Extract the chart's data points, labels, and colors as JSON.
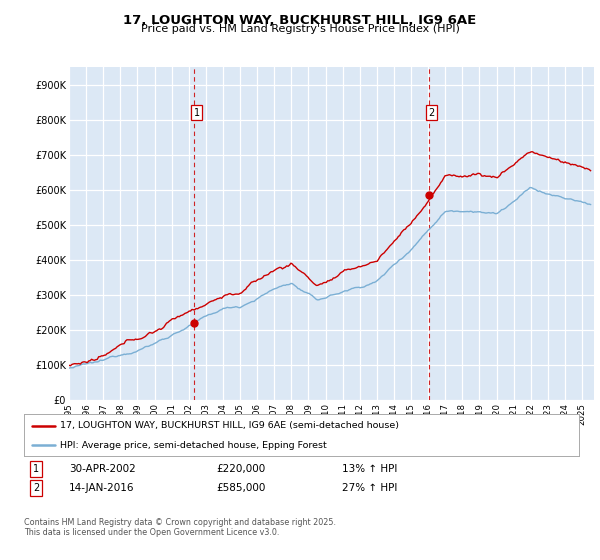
{
  "title": "17, LOUGHTON WAY, BUCKHURST HILL, IG9 6AE",
  "subtitle": "Price paid vs. HM Land Registry's House Price Index (HPI)",
  "legend_line1": "17, LOUGHTON WAY, BUCKHURST HILL, IG9 6AE (semi-detached house)",
  "legend_line2": "HPI: Average price, semi-detached house, Epping Forest",
  "footnote": "Contains HM Land Registry data © Crown copyright and database right 2025.\nThis data is licensed under the Open Government Licence v3.0.",
  "marker1_date": "30-APR-2002",
  "marker1_price": "£220,000",
  "marker1_hpi": "13% ↑ HPI",
  "marker1_year": 2002.33,
  "marker1_value": 220000,
  "marker2_date": "14-JAN-2016",
  "marker2_price": "£585,000",
  "marker2_hpi": "27% ↑ HPI",
  "marker2_year": 2016.04,
  "marker2_value": 585000,
  "hpi_color": "#7bafd4",
  "price_color": "#cc0000",
  "marker_color": "#cc0000",
  "vline_color": "#cc0000",
  "background_color": "#dce8f5",
  "grid_color": "#ffffff",
  "ylim": [
    0,
    950000
  ],
  "yticks": [
    0,
    100000,
    200000,
    300000,
    400000,
    500000,
    600000,
    700000,
    800000,
    900000
  ],
  "ytick_labels": [
    "£0",
    "£100K",
    "£200K",
    "£300K",
    "£400K",
    "£500K",
    "£600K",
    "£700K",
    "£800K",
    "£900K"
  ],
  "xlim_start": 1995,
  "xlim_end": 2025.7
}
